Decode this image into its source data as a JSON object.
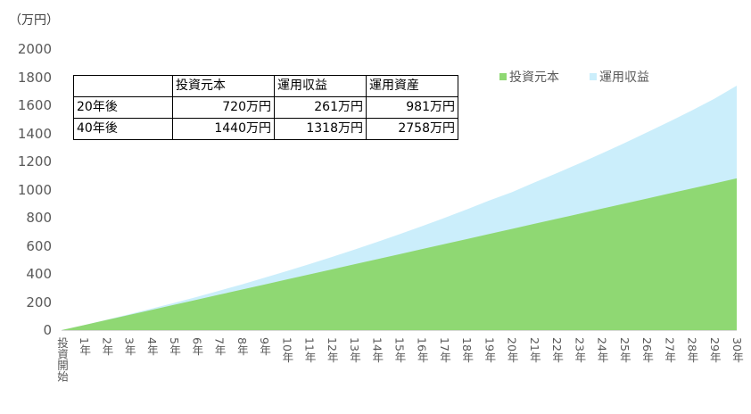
{
  "chart_data": {
    "type": "area",
    "stacked": true,
    "title": "",
    "ylabel": "（万円）",
    "xlabel": "",
    "ylim": [
      0,
      2000
    ],
    "yticks": [
      0,
      200,
      400,
      600,
      800,
      1000,
      1200,
      1400,
      1600,
      1800,
      2000
    ],
    "categories": [
      "投資開始",
      "1年",
      "2年",
      "3年",
      "4年",
      "5年",
      "6年",
      "7年",
      "8年",
      "9年",
      "10年",
      "11年",
      "12年",
      "13年",
      "14年",
      "15年",
      "16年",
      "17年",
      "18年",
      "19年",
      "20年",
      "21年",
      "22年",
      "23年",
      "24年",
      "25年",
      "26年",
      "27年",
      "28年",
      "29年",
      "30年"
    ],
    "series": [
      {
        "name": "投資元本",
        "color": "#8fd873",
        "values": [
          0,
          36,
          72,
          108,
          144,
          180,
          216,
          252,
          288,
          324,
          360,
          396,
          432,
          468,
          504,
          540,
          576,
          612,
          648,
          684,
          720,
          756,
          792,
          828,
          864,
          900,
          936,
          972,
          1008,
          1044,
          1080
        ]
      },
      {
        "name": "運用収益",
        "color": "#cbeefb",
        "values": [
          0,
          0,
          2,
          5,
          9,
          14,
          20,
          28,
          37,
          48,
          60,
          73,
          88,
          104,
          122,
          142,
          163,
          186,
          211,
          238,
          261,
          294,
          325,
          358,
          393,
          430,
          470,
          511,
          555,
          602,
          660
        ]
      }
    ],
    "legend_position": "top-right",
    "grid": false
  },
  "unit_label": "（万円）",
  "legend": [
    {
      "label": "投資元本",
      "color": "#8fd873"
    },
    {
      "label": "運用収益",
      "color": "#cbeefb"
    }
  ],
  "summary_table": {
    "headers": [
      "",
      "投資元本",
      "運用収益",
      "運用資産"
    ],
    "rows": [
      [
        "20年後",
        "720万円",
        "261万円",
        "981万円"
      ],
      [
        "40年後",
        "1440万円",
        "1318万円",
        "2758万円"
      ]
    ]
  }
}
